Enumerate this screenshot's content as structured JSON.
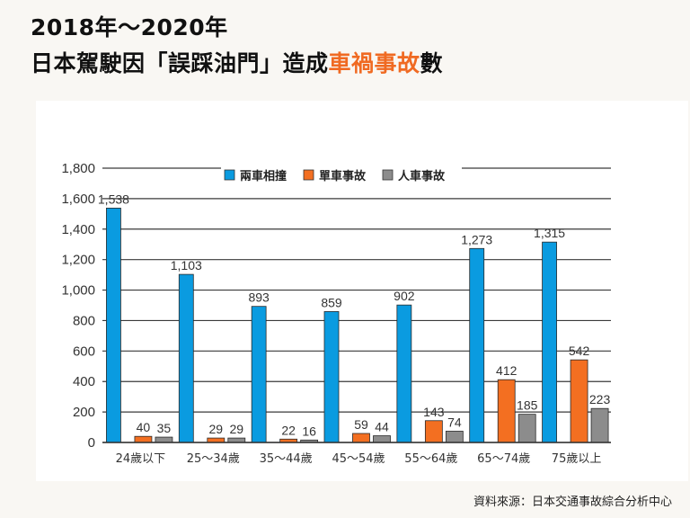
{
  "header": {
    "title_line1": "2018年～2020年",
    "title_line2_parts": [
      {
        "text": "日本駕駛因「誤踩油門」造成",
        "highlight": false
      },
      {
        "text": "車禍事故",
        "highlight": true
      },
      {
        "text": "數",
        "highlight": false
      }
    ],
    "highlight_color": "#f06a22"
  },
  "source": "資料來源：日本交通事故綜合分析中心",
  "chart_data": {
    "type": "bar",
    "title": "2018年～2020年 日本駕駛因「誤踩油門」造成車禍事故數",
    "xlabel": "",
    "ylabel": "",
    "ylim": [
      0,
      1800
    ],
    "yticks": [
      0,
      200,
      400,
      600,
      800,
      1000,
      1200,
      1400,
      1600,
      1800
    ],
    "ytick_labels": [
      "0",
      "200",
      "400",
      "600",
      "800",
      "1,000",
      "1,200",
      "1,400",
      "1,600",
      "1,800"
    ],
    "grid": true,
    "legend_position": "top-center",
    "categories": [
      "24歲以下",
      "25～34歲",
      "35～44歲",
      "45～54歲",
      "55～64歲",
      "65～74歲",
      "75歲以上"
    ],
    "series": [
      {
        "name": "兩車相撞",
        "color": "#0a9be0",
        "values": [
          1538,
          1103,
          893,
          859,
          902,
          1273,
          1315
        ],
        "labels": [
          "1,538",
          "1,103",
          "893",
          "859",
          "902",
          "1,273",
          "1,315"
        ]
      },
      {
        "name": "單車事故",
        "color": "#f36f21",
        "values": [
          40,
          29,
          22,
          59,
          143,
          412,
          542
        ],
        "labels": [
          "40",
          "29",
          "22",
          "59",
          "143",
          "412",
          "542"
        ]
      },
      {
        "name": "人車事故",
        "color": "#8c8c8c",
        "values": [
          35,
          29,
          16,
          44,
          74,
          185,
          223
        ],
        "labels": [
          "35",
          "29",
          "16",
          "44",
          "74",
          "185",
          "223"
        ]
      }
    ]
  }
}
